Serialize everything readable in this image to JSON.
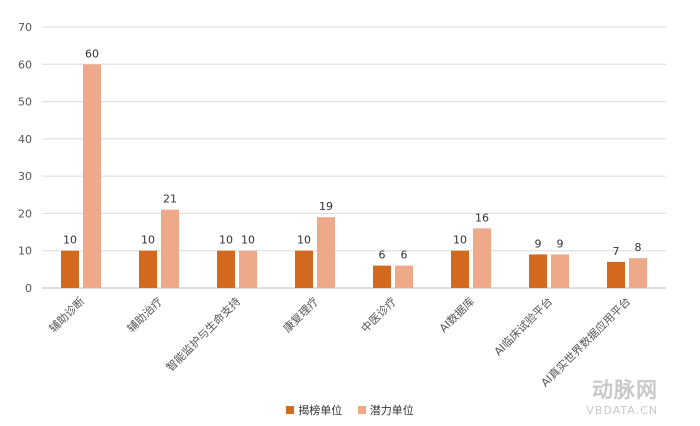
{
  "chart_data": {
    "type": "bar",
    "categories": [
      "辅助诊断",
      "辅助治疗",
      "智能监护与生命支持",
      "康复理疗",
      "中医诊疗",
      "AI数据库",
      "AI临床试验平台",
      "AI真实世界数据应用平台"
    ],
    "series": [
      {
        "name": "揭榜单位",
        "values": [
          10,
          10,
          10,
          10,
          6,
          10,
          9,
          7
        ],
        "color": "#d2691e"
      },
      {
        "name": "潜力单位",
        "values": [
          60,
          21,
          10,
          19,
          6,
          16,
          9,
          8
        ],
        "color": "#eda98a"
      }
    ],
    "yticks": [
      0,
      10,
      20,
      30,
      40,
      50,
      60,
      70
    ],
    "ylim": [
      0,
      70
    ],
    "grid": true,
    "legend_position": "bottom"
  },
  "watermark": {
    "logo": "动脉网",
    "url": "VBDATA.CN"
  }
}
